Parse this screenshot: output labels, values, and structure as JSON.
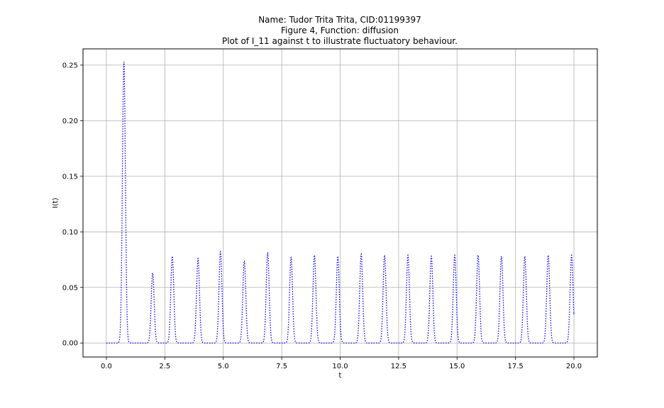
{
  "title": {
    "line1": "Name: Tudor Trita Trita, CID:01199397",
    "line2": "Figure 4, Function: diffusion",
    "line3": "Plot of I_11 against t to illustrate fluctuatory behaviour."
  },
  "chart_data": {
    "type": "line",
    "xlabel": "t",
    "ylabel": "I(t)",
    "xlim": [
      -1.0,
      21.0
    ],
    "ylim": [
      -0.0126,
      0.2646
    ],
    "xticks": [
      0.0,
      2.5,
      5.0,
      7.5,
      10.0,
      12.5,
      15.0,
      17.5,
      20.0
    ],
    "xtick_labels": [
      "0.0",
      "2.5",
      "5.0",
      "7.5",
      "10.0",
      "12.5",
      "15.0",
      "17.5",
      "20.0"
    ],
    "yticks": [
      0.0,
      0.05,
      0.1,
      0.15,
      0.2,
      0.25
    ],
    "ytick_labels": [
      "0.00",
      "0.05",
      "0.10",
      "0.15",
      "0.20",
      "0.25"
    ],
    "grid": true,
    "line_style": "dotted",
    "series": [
      {
        "color": "#0000ff",
        "peaks": [
          {
            "t": 0.75,
            "value": 0.253
          },
          {
            "t": 1.98,
            "value": 0.063
          },
          {
            "t": 2.82,
            "value": 0.078
          },
          {
            "t": 3.92,
            "value": 0.076
          },
          {
            "t": 4.88,
            "value": 0.082
          },
          {
            "t": 5.9,
            "value": 0.074
          },
          {
            "t": 6.9,
            "value": 0.081
          },
          {
            "t": 7.9,
            "value": 0.077
          },
          {
            "t": 8.9,
            "value": 0.079
          },
          {
            "t": 9.9,
            "value": 0.078
          },
          {
            "t": 10.9,
            "value": 0.08
          },
          {
            "t": 11.9,
            "value": 0.079
          },
          {
            "t": 12.9,
            "value": 0.079
          },
          {
            "t": 13.9,
            "value": 0.078
          },
          {
            "t": 14.9,
            "value": 0.079
          },
          {
            "t": 15.9,
            "value": 0.079
          },
          {
            "t": 16.9,
            "value": 0.078
          },
          {
            "t": 17.9,
            "value": 0.078
          },
          {
            "t": 18.9,
            "value": 0.079
          },
          {
            "t": 19.9,
            "value": 0.079
          }
        ],
        "t_end": 20.0,
        "value_end": 0.028
      }
    ]
  }
}
